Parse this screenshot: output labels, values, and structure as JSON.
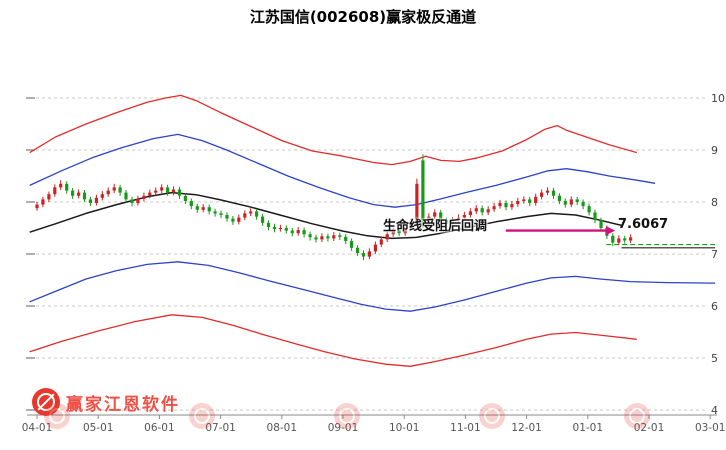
{
  "title": "江苏国信(002608)赢家极反通道",
  "annotation": {
    "text": "生命线受阻后回调",
    "price_label": "7.6067"
  },
  "watermark": {
    "brand": "赢家江恩软件"
  },
  "colors": {
    "up_candle": "#cc2222",
    "down_candle": "#179a17",
    "outer_band": "#e32b2b",
    "inner_band": "#2b43c8",
    "lifeline": "#1a1a1a",
    "arrow": "#d4117c",
    "grid": "#c9c9c9",
    "brand_red": "#ef5147"
  },
  "axes": {
    "x_ticks": [
      "04-01",
      "05-01",
      "06-01",
      "07-01",
      "08-01",
      "09-01",
      "10-01",
      "11-01",
      "12-01",
      "01-01",
      "02-01",
      "03-01"
    ],
    "y_ticks": [
      10,
      9,
      8,
      7,
      6,
      5,
      4
    ]
  },
  "chart_data": {
    "type": "candlestick",
    "title": "江苏国信(002608)赢家极反通道",
    "x_unit": "months since 04-01 (tick index)",
    "ylim": [
      4,
      10
    ],
    "grid": true,
    "bands": [
      {
        "name": "upper-resistance-red-line",
        "color": "#e32b2b",
        "width": 1.3,
        "points": [
          [
            -0.12,
            8.95
          ],
          [
            0.3,
            9.25
          ],
          [
            0.8,
            9.5
          ],
          [
            1.3,
            9.72
          ],
          [
            1.8,
            9.92
          ],
          [
            2.1,
            10.0
          ],
          [
            2.35,
            10.05
          ],
          [
            2.6,
            9.95
          ],
          [
            3.0,
            9.72
          ],
          [
            3.5,
            9.45
          ],
          [
            4.0,
            9.18
          ],
          [
            4.5,
            8.98
          ],
          [
            5.0,
            8.88
          ],
          [
            5.5,
            8.76
          ],
          [
            5.8,
            8.72
          ],
          [
            6.1,
            8.78
          ],
          [
            6.35,
            8.88
          ],
          [
            6.6,
            8.8
          ],
          [
            6.9,
            8.78
          ],
          [
            7.2,
            8.85
          ],
          [
            7.6,
            8.98
          ],
          [
            8.0,
            9.2
          ],
          [
            8.3,
            9.4
          ],
          [
            8.5,
            9.47
          ],
          [
            8.65,
            9.38
          ],
          [
            9.0,
            9.24
          ],
          [
            9.35,
            9.1
          ],
          [
            9.8,
            8.95
          ]
        ]
      },
      {
        "name": "upper-blue-channel-line",
        "color": "#2b43c8",
        "width": 1.3,
        "points": [
          [
            -0.12,
            8.32
          ],
          [
            0.4,
            8.6
          ],
          [
            0.9,
            8.85
          ],
          [
            1.4,
            9.05
          ],
          [
            1.9,
            9.22
          ],
          [
            2.3,
            9.3
          ],
          [
            2.7,
            9.18
          ],
          [
            3.1,
            9.0
          ],
          [
            3.6,
            8.75
          ],
          [
            4.1,
            8.5
          ],
          [
            4.6,
            8.28
          ],
          [
            5.1,
            8.08
          ],
          [
            5.5,
            7.95
          ],
          [
            5.85,
            7.9
          ],
          [
            6.2,
            7.95
          ],
          [
            6.6,
            8.06
          ],
          [
            7.0,
            8.18
          ],
          [
            7.5,
            8.32
          ],
          [
            8.0,
            8.48
          ],
          [
            8.35,
            8.6
          ],
          [
            8.65,
            8.64
          ],
          [
            9.0,
            8.58
          ],
          [
            9.35,
            8.5
          ],
          [
            9.8,
            8.42
          ],
          [
            10.1,
            8.36
          ]
        ]
      },
      {
        "name": "lifeline-black-line",
        "color": "#1a1a1a",
        "width": 1.5,
        "points": [
          [
            -0.12,
            7.42
          ],
          [
            0.3,
            7.58
          ],
          [
            0.8,
            7.78
          ],
          [
            1.3,
            7.95
          ],
          [
            1.8,
            8.1
          ],
          [
            2.2,
            8.18
          ],
          [
            2.6,
            8.14
          ],
          [
            3.0,
            8.04
          ],
          [
            3.5,
            7.9
          ],
          [
            4.0,
            7.74
          ],
          [
            4.5,
            7.58
          ],
          [
            5.0,
            7.44
          ],
          [
            5.4,
            7.35
          ],
          [
            5.8,
            7.3
          ],
          [
            6.2,
            7.32
          ],
          [
            6.6,
            7.4
          ],
          [
            7.0,
            7.5
          ],
          [
            7.5,
            7.62
          ],
          [
            8.0,
            7.72
          ],
          [
            8.4,
            7.78
          ],
          [
            8.8,
            7.75
          ],
          [
            9.2,
            7.65
          ],
          [
            9.55,
            7.55
          ]
        ]
      },
      {
        "name": "lower-blue-channel-line",
        "color": "#2b43c8",
        "width": 1.3,
        "points": [
          [
            -0.12,
            6.08
          ],
          [
            0.3,
            6.28
          ],
          [
            0.8,
            6.52
          ],
          [
            1.3,
            6.68
          ],
          [
            1.8,
            6.8
          ],
          [
            2.3,
            6.85
          ],
          [
            2.8,
            6.78
          ],
          [
            3.3,
            6.64
          ],
          [
            3.8,
            6.48
          ],
          [
            4.3,
            6.33
          ],
          [
            4.8,
            6.18
          ],
          [
            5.3,
            6.03
          ],
          [
            5.7,
            5.94
          ],
          [
            6.1,
            5.9
          ],
          [
            6.5,
            5.98
          ],
          [
            7.0,
            6.12
          ],
          [
            7.5,
            6.28
          ],
          [
            8.0,
            6.44
          ],
          [
            8.4,
            6.54
          ],
          [
            8.8,
            6.57
          ],
          [
            9.2,
            6.52
          ],
          [
            9.7,
            6.47
          ],
          [
            10.3,
            6.45
          ],
          [
            11.08,
            6.44
          ]
        ]
      },
      {
        "name": "lower-support-red-line",
        "color": "#e32b2b",
        "width": 1.3,
        "points": [
          [
            -0.12,
            5.12
          ],
          [
            0.4,
            5.32
          ],
          [
            1.0,
            5.52
          ],
          [
            1.6,
            5.7
          ],
          [
            2.2,
            5.83
          ],
          [
            2.7,
            5.78
          ],
          [
            3.2,
            5.63
          ],
          [
            3.7,
            5.45
          ],
          [
            4.2,
            5.28
          ],
          [
            4.7,
            5.12
          ],
          [
            5.2,
            4.98
          ],
          [
            5.7,
            4.88
          ],
          [
            6.1,
            4.84
          ],
          [
            6.5,
            4.93
          ],
          [
            7.0,
            5.06
          ],
          [
            7.5,
            5.2
          ],
          [
            8.0,
            5.36
          ],
          [
            8.4,
            5.46
          ],
          [
            8.8,
            5.49
          ],
          [
            9.2,
            5.44
          ],
          [
            9.8,
            5.36
          ]
        ]
      }
    ],
    "extra_lines": [
      {
        "name": "lifeline-projection-line",
        "color": "#222222",
        "width": 1.1,
        "dash": "",
        "points": [
          [
            9.55,
            7.12
          ],
          [
            11.08,
            7.12
          ]
        ]
      },
      {
        "name": "last-price-dashed-line",
        "color": "#17a017",
        "width": 1.1,
        "dash": "5,3",
        "points": [
          [
            9.3,
            7.18
          ],
          [
            11.08,
            7.18
          ]
        ]
      }
    ],
    "annotation_arrow": {
      "from_t": 7.66,
      "to_t": 9.3,
      "price": 7.45,
      "color": "#d4117c"
    },
    "candles": {
      "t0": 0,
      "dt": 0.097,
      "up_color": "#cc2222",
      "down_color": "#179a17",
      "ohlc": [
        [
          7.88,
          8.0,
          7.83,
          7.95
        ],
        [
          7.95,
          8.1,
          7.9,
          8.05
        ],
        [
          8.05,
          8.2,
          8.0,
          8.15
        ],
        [
          8.15,
          8.34,
          8.1,
          8.28
        ],
        [
          8.28,
          8.42,
          8.23,
          8.35
        ],
        [
          8.35,
          8.4,
          8.16,
          8.22
        ],
        [
          8.22,
          8.27,
          8.06,
          8.12
        ],
        [
          8.12,
          8.24,
          8.07,
          8.18
        ],
        [
          8.18,
          8.23,
          8.0,
          8.05
        ],
        [
          8.05,
          8.1,
          7.92,
          7.98
        ],
        [
          7.98,
          8.14,
          7.93,
          8.08
        ],
        [
          8.08,
          8.21,
          8.03,
          8.15
        ],
        [
          8.15,
          8.28,
          8.1,
          8.22
        ],
        [
          8.22,
          8.35,
          8.17,
          8.28
        ],
        [
          8.28,
          8.33,
          8.12,
          8.18
        ],
        [
          8.18,
          8.23,
          7.99,
          8.05
        ],
        [
          8.05,
          8.1,
          7.92,
          7.98
        ],
        [
          7.98,
          8.12,
          7.93,
          8.06
        ],
        [
          8.06,
          8.18,
          8.01,
          8.12
        ],
        [
          8.12,
          8.24,
          8.07,
          8.18
        ],
        [
          8.18,
          8.28,
          8.13,
          8.22
        ],
        [
          8.22,
          8.34,
          8.17,
          8.28
        ],
        [
          8.28,
          8.33,
          8.12,
          8.18
        ],
        [
          8.18,
          8.3,
          8.13,
          8.24
        ],
        [
          8.24,
          8.29,
          8.06,
          8.12
        ],
        [
          8.12,
          8.17,
          7.96,
          8.02
        ],
        [
          8.02,
          8.07,
          7.86,
          7.92
        ],
        [
          7.92,
          7.97,
          7.79,
          7.85
        ],
        [
          7.85,
          7.96,
          7.8,
          7.9
        ],
        [
          7.9,
          7.95,
          7.76,
          7.82
        ],
        [
          7.82,
          7.87,
          7.72,
          7.78
        ],
        [
          7.78,
          7.83,
          7.69,
          7.75
        ],
        [
          7.75,
          7.8,
          7.62,
          7.68
        ],
        [
          7.68,
          7.73,
          7.56,
          7.62
        ],
        [
          7.62,
          7.76,
          7.57,
          7.7
        ],
        [
          7.7,
          7.84,
          7.65,
          7.78
        ],
        [
          7.78,
          7.88,
          7.73,
          7.82
        ],
        [
          7.82,
          7.87,
          7.66,
          7.72
        ],
        [
          7.72,
          7.77,
          7.54,
          7.6
        ],
        [
          7.6,
          7.65,
          7.46,
          7.52
        ],
        [
          7.52,
          7.58,
          7.42,
          7.48
        ],
        [
          7.48,
          7.56,
          7.43,
          7.5
        ],
        [
          7.5,
          7.55,
          7.39,
          7.45
        ],
        [
          7.45,
          7.5,
          7.34,
          7.4
        ],
        [
          7.4,
          7.52,
          7.35,
          7.46
        ],
        [
          7.46,
          7.51,
          7.32,
          7.38
        ],
        [
          7.38,
          7.43,
          7.26,
          7.32
        ],
        [
          7.32,
          7.37,
          7.22,
          7.28
        ],
        [
          7.28,
          7.4,
          7.23,
          7.34
        ],
        [
          7.34,
          7.39,
          7.24,
          7.3
        ],
        [
          7.3,
          7.42,
          7.25,
          7.36
        ],
        [
          7.36,
          7.41,
          7.27,
          7.33
        ],
        [
          7.33,
          7.38,
          7.19,
          7.25
        ],
        [
          7.25,
          7.3,
          7.06,
          7.12
        ],
        [
          7.12,
          7.17,
          6.96,
          7.02
        ],
        [
          7.02,
          7.07,
          6.88,
          6.95
        ],
        [
          6.95,
          7.11,
          6.9,
          7.05
        ],
        [
          7.05,
          7.24,
          7.0,
          7.18
        ],
        [
          7.18,
          7.34,
          7.13,
          7.28
        ],
        [
          7.28,
          7.44,
          7.23,
          7.38
        ],
        [
          7.38,
          7.51,
          7.33,
          7.45
        ],
        [
          7.45,
          7.5,
          7.34,
          7.4
        ],
        [
          7.4,
          7.56,
          7.35,
          7.5
        ],
        [
          7.5,
          7.68,
          7.45,
          7.62
        ],
        [
          7.62,
          8.45,
          7.58,
          8.35
        ],
        [
          8.8,
          8.92,
          7.5,
          7.6
        ],
        [
          7.6,
          7.78,
          7.55,
          7.72
        ],
        [
          7.72,
          7.86,
          7.67,
          7.8
        ],
        [
          7.8,
          7.85,
          7.59,
          7.65
        ],
        [
          7.65,
          7.7,
          7.52,
          7.58
        ],
        [
          7.58,
          7.71,
          7.53,
          7.65
        ],
        [
          7.65,
          7.76,
          7.6,
          7.7
        ],
        [
          7.7,
          7.81,
          7.65,
          7.75
        ],
        [
          7.75,
          7.88,
          7.7,
          7.82
        ],
        [
          7.82,
          7.94,
          7.77,
          7.88
        ],
        [
          7.88,
          7.93,
          7.74,
          7.8
        ],
        [
          7.8,
          7.92,
          7.75,
          7.86
        ],
        [
          7.86,
          7.98,
          7.81,
          7.92
        ],
        [
          7.92,
          8.04,
          7.87,
          7.98
        ],
        [
          7.98,
          8.03,
          7.84,
          7.9
        ],
        [
          7.9,
          8.02,
          7.85,
          7.96
        ],
        [
          7.96,
          8.08,
          7.91,
          8.02
        ],
        [
          8.02,
          8.11,
          7.97,
          8.05
        ],
        [
          8.05,
          8.1,
          7.92,
          7.98
        ],
        [
          7.98,
          8.16,
          7.93,
          8.1
        ],
        [
          8.1,
          8.24,
          8.05,
          8.18
        ],
        [
          8.18,
          8.28,
          8.13,
          8.22
        ],
        [
          8.22,
          8.27,
          8.06,
          8.12
        ],
        [
          8.12,
          8.17,
          7.96,
          8.02
        ],
        [
          8.02,
          8.07,
          7.89,
          7.95
        ],
        [
          7.95,
          8.11,
          7.9,
          8.05
        ],
        [
          8.05,
          8.1,
          7.94,
          8.0
        ],
        [
          8.0,
          8.05,
          7.86,
          7.92
        ],
        [
          7.92,
          7.97,
          7.74,
          7.8
        ],
        [
          7.8,
          7.85,
          7.59,
          7.65
        ],
        [
          7.65,
          7.7,
          7.44,
          7.5
        ],
        [
          7.5,
          7.55,
          7.29,
          7.35
        ],
        [
          7.35,
          7.4,
          7.15,
          7.22
        ],
        [
          7.22,
          7.36,
          7.17,
          7.3
        ],
        [
          7.3,
          7.35,
          7.2,
          7.26
        ],
        [
          7.26,
          7.38,
          7.21,
          7.32
        ]
      ]
    }
  }
}
